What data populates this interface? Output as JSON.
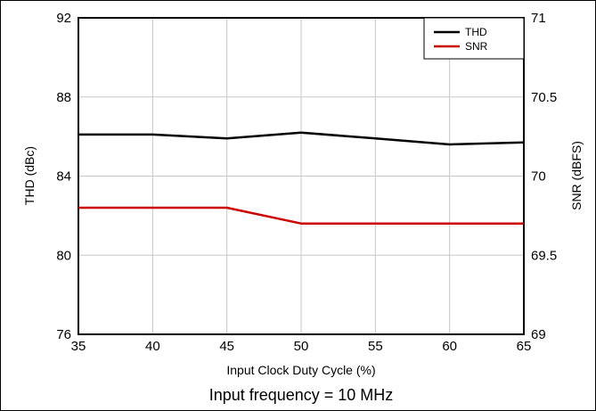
{
  "chart_data": {
    "type": "line",
    "caption": "Input frequency = 10 MHz",
    "xlabel": "Input Clock Duty Cycle (%)",
    "ylabel_left": "THD (dBc)",
    "ylabel_right": "SNR (dBFS)",
    "xlim": [
      35,
      65
    ],
    "ylim_left": [
      76,
      92
    ],
    "ylim_right": [
      69,
      71
    ],
    "x_ticks": [
      "35",
      "40",
      "45",
      "50",
      "55",
      "60",
      "65"
    ],
    "y_left_ticks": [
      "76",
      "80",
      "84",
      "88",
      "92"
    ],
    "y_right_ticks": [
      "69",
      "69.5",
      "70",
      "70.5",
      "71"
    ],
    "grid": true,
    "legend_position": "top-right",
    "series": [
      {
        "name": "THD",
        "axis": "left",
        "color": "#000000",
        "x": [
          35,
          40,
          45,
          50,
          55,
          60,
          65
        ],
        "y": [
          86.1,
          86.1,
          85.9,
          86.2,
          85.9,
          85.6,
          85.7
        ]
      },
      {
        "name": "SNR",
        "axis": "right",
        "color": "#cc0000",
        "x": [
          35,
          40,
          45,
          50,
          55,
          60,
          65
        ],
        "y": [
          69.8,
          69.8,
          69.8,
          69.7,
          69.7,
          69.7,
          69.7
        ]
      }
    ]
  }
}
